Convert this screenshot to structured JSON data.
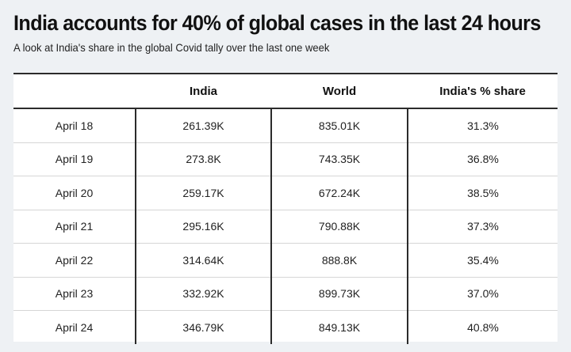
{
  "title": "India accounts for 40% of global cases in the last 24 hours",
  "subtitle": "A look at India's share in the global Covid tally over the last one week",
  "chart_data": {
    "type": "table",
    "columns": [
      "",
      "India",
      "World",
      "India's % share"
    ],
    "rows": [
      [
        "April 18",
        "261.39K",
        "835.01K",
        "31.3%"
      ],
      [
        "April 19",
        "273.8K",
        "743.35K",
        "36.8%"
      ],
      [
        "April 20",
        "259.17K",
        "672.24K",
        "38.5%"
      ],
      [
        "April 21",
        "295.16K",
        "790.88K",
        "37.3%"
      ],
      [
        "April 22",
        "314.64K",
        "888.8K",
        "35.4%"
      ],
      [
        "April 23",
        "332.92K",
        "899.73K",
        "37.0%"
      ],
      [
        "April 24",
        "346.79K",
        "849.13K",
        "40.8%"
      ]
    ]
  }
}
